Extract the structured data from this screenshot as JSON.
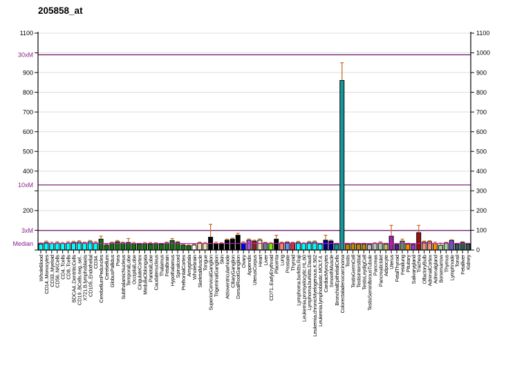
{
  "title": "205858_at",
  "chart_data": {
    "type": "bar",
    "title": "205858_at",
    "ylabel": "",
    "xlabel": "",
    "ylim": [
      0,
      1100
    ],
    "grid": "horizontal",
    "gridline_step": 100,
    "legend": "none",
    "median_value": 33,
    "marker_lines": [
      {
        "label": "30xM",
        "value": 990
      },
      {
        "label": "10xM",
        "value": 330
      },
      {
        "label": "3xM",
        "value": 99
      },
      {
        "label": "Median",
        "value": 33
      }
    ],
    "left_axis_labels": [
      {
        "text": "1100",
        "value": 1100,
        "purple": false
      },
      {
        "text": "30xM",
        "value": 990,
        "purple": true
      },
      {
        "text": "900",
        "value": 900,
        "purple": false
      },
      {
        "text": "800",
        "value": 800,
        "purple": false
      },
      {
        "text": "700",
        "value": 700,
        "purple": false
      },
      {
        "text": "600",
        "value": 600,
        "purple": false
      },
      {
        "text": "500",
        "value": 500,
        "purple": false
      },
      {
        "text": "400",
        "value": 400,
        "purple": false
      },
      {
        "text": "10xM",
        "value": 330,
        "purple": true
      },
      {
        "text": "200",
        "value": 200,
        "purple": false
      },
      {
        "text": "3xM",
        "value": 99,
        "purple": true
      },
      {
        "text": "Median",
        "value": 33,
        "purple": true
      }
    ],
    "right_axis_labels": [
      {
        "text": "1100",
        "value": 1100
      },
      {
        "text": "1000",
        "value": 1000
      },
      {
        "text": "900",
        "value": 900
      },
      {
        "text": "800",
        "value": 800
      },
      {
        "text": "700",
        "value": 700
      },
      {
        "text": "600",
        "value": 600
      },
      {
        "text": "500",
        "value": 500
      },
      {
        "text": "400",
        "value": 400
      },
      {
        "text": "300",
        "value": 300
      },
      {
        "text": "200",
        "value": 200
      },
      {
        "text": "100",
        "value": 100
      },
      {
        "text": "0",
        "value": 0
      }
    ],
    "palette": {
      "cyan": "#00FFFF",
      "darkgreen": "#167016",
      "wheat": "#F5DEB3",
      "black_": "#000000",
      "white_": "#FFFFFF",
      "blue": "#0000EE",
      "orchid": "#B452CD",
      "maroon": "#8B2323",
      "slategray": "#708090",
      "chartreuse": "#76EE00",
      "salmon": "#FA8072",
      "cornflower": "#6495ED",
      "crimson": "#DC2A50",
      "navy": "#00008B",
      "teal": "#149898",
      "darkgold": "#B8860B",
      "gray": "#BEBEBE",
      "palegreen": "#9FCD9F",
      "khaki": "#BDB76B",
      "magenta": "#AA1FAA",
      "darkpurple": "#551A8B",
      "graygreen": "#6E8B6E",
      "orange": "#FF8C00",
      "violet": "#9A32CD",
      "darkred": "#9B1010",
      "salmon2": "#E9967A",
      "slateblue": "#6A5ACD",
      "darkslate": "#2F5B52"
    },
    "style_colors": {
      "purple_label": "#8B1F8B",
      "marker_line": "#6B0F6B",
      "median_line": "#BE1CBE",
      "gridline": "#DCDCDC",
      "error_bar": "#C2661F",
      "axis": "#000000"
    },
    "samples": [
      [
        "WholeBlood",
        30,
        36,
        "cyan"
      ],
      [
        "CD14..Monocytes",
        38,
        45,
        "cyan"
      ],
      [
        "CD33..Myeloid",
        33,
        40,
        "cyan"
      ],
      [
        "CD56..NKCells",
        35,
        42,
        "cyan"
      ],
      [
        "CD4..Tcells",
        33,
        38,
        "cyan"
      ],
      [
        "CD8..Tcells",
        35,
        42,
        "cyan"
      ],
      [
        "BDCA4..DentriticCells",
        38,
        44,
        "cyan"
      ],
      [
        "CD19..BCells.neg..sel..",
        40,
        47,
        "cyan"
      ],
      [
        "X721.B.lymphoblasts",
        35,
        40,
        "cyan"
      ],
      [
        "CD105..Endothelial",
        42,
        48,
        "cyan"
      ],
      [
        "CD34.",
        35,
        42,
        "cyan"
      ],
      [
        "CerebellumPeduncles",
        55,
        70,
        "darkgreen"
      ],
      [
        "Cerebellum",
        25,
        30,
        "darkgreen"
      ],
      [
        "GlobusPallidus",
        35,
        40,
        "darkgreen"
      ],
      [
        "Pons",
        42,
        48,
        "darkgreen"
      ],
      [
        "SubthalamicNucleus",
        35,
        40,
        "darkgreen"
      ],
      [
        "TemporalLobe",
        38,
        58,
        "darkgreen"
      ],
      [
        "OccipitalLobe",
        33,
        38,
        "darkgreen"
      ],
      [
        "CingulateCortex",
        30,
        34,
        "darkgreen"
      ],
      [
        "MedullaOblongata",
        33,
        38,
        "darkgreen"
      ],
      [
        "ParietalLobe",
        30,
        38,
        "darkgreen"
      ],
      [
        "Caudatenucleus",
        33,
        37,
        "darkgreen"
      ],
      [
        "Thalamus",
        30,
        34,
        "darkgreen"
      ],
      [
        "Fetalbrain",
        35,
        40,
        "darkgreen"
      ],
      [
        "Hypothalamus",
        48,
        58,
        "darkgreen"
      ],
      [
        "Spinalcord",
        38,
        43,
        "darkgreen"
      ],
      [
        "PrefrontalCortex",
        25,
        29,
        "darkgreen"
      ],
      [
        "Amygdala",
        22,
        26,
        "darkgreen"
      ],
      [
        "Wholebrain",
        25,
        29,
        "white_"
      ],
      [
        "SkeletalMuscle",
        35,
        40,
        "wheat"
      ],
      [
        "Tongue",
        33,
        38,
        "wheat"
      ],
      [
        "SuperiorCervicalGanglion",
        65,
        130,
        "black_"
      ],
      [
        "TrigeminalGanglion",
        30,
        40,
        "black_"
      ],
      [
        "Skin",
        33,
        37,
        "black_"
      ],
      [
        "AtrioventricularNode",
        50,
        55,
        "black_"
      ],
      [
        "CiliaryGanglion",
        55,
        60,
        "black_"
      ],
      [
        "DorsalRootGanglion",
        75,
        85,
        "black_"
      ],
      [
        "Ovary",
        35,
        42,
        "blue"
      ],
      [
        "Appendix",
        50,
        56,
        "orchid"
      ],
      [
        "UterusCorpus",
        45,
        50,
        "maroon"
      ],
      [
        "Heart",
        50,
        56,
        "wheat"
      ],
      [
        "Liver",
        35,
        39,
        "slategray"
      ],
      [
        "CD71..EarlyErythroid",
        33,
        37,
        "chartreuse"
      ],
      [
        "Placenta",
        55,
        75,
        "black_"
      ],
      [
        "Lung",
        35,
        40,
        "salmon"
      ],
      [
        "Prostate",
        38,
        42,
        "cornflower"
      ],
      [
        "Thyroid",
        35,
        39,
        "crimson"
      ],
      [
        "Lymphoma.burkitts.Raji",
        38,
        44,
        "cyan"
      ],
      [
        "Leukemia.promyelocytic.HL.60",
        33,
        37,
        "cyan"
      ],
      [
        "Lymphoma.burkitts.Daudi",
        38,
        44,
        "cyan"
      ],
      [
        "Leukemia.chronicMyelogenous.K.562",
        40,
        46,
        "cyan"
      ],
      [
        "Leukemia.lymphoblastic.MOLT.4.",
        30,
        34,
        "cyan"
      ],
      [
        "CardiacMyocytes",
        50,
        75,
        "navy"
      ],
      [
        "SmoothMuscle",
        45,
        50,
        "navy"
      ],
      [
        "BronchialEpithelialCells",
        30,
        34,
        "teal"
      ],
      [
        "Colorectaladenocarcinoma",
        860,
        950,
        "teal"
      ],
      [
        "Testis",
        30,
        34,
        "darkgold"
      ],
      [
        "TestisGermCell",
        32,
        36,
        "darkgold"
      ],
      [
        "TestisInterstitial",
        30,
        34,
        "darkgold"
      ],
      [
        "TestisLeydigCell",
        30,
        34,
        "darkgold"
      ],
      [
        "TestisSeminiferousTubule",
        28,
        32,
        "gray"
      ],
      [
        "Pancreas",
        33,
        37,
        "gray"
      ],
      [
        "PancreaticIslet",
        35,
        42,
        "palegreen"
      ],
      [
        "Adipocyte",
        30,
        34,
        "khaki"
      ],
      [
        "Uterus",
        70,
        125,
        "magenta"
      ],
      [
        "FetalThyroid",
        28,
        32,
        "darkpurple"
      ],
      [
        "Fetallung",
        45,
        55,
        "graygreen"
      ],
      [
        "Pituitary",
        30,
        34,
        "orange"
      ],
      [
        "Salivarygland",
        28,
        32,
        "violet"
      ],
      [
        "Trachea",
        88,
        125,
        "darkred"
      ],
      [
        "OlfactoryBulb",
        40,
        45,
        "salmon2"
      ],
      [
        "AdrenalCortex",
        42,
        47,
        "salmon2"
      ],
      [
        "Adrenalgland",
        33,
        40,
        "orange"
      ],
      [
        "Bonemarrow",
        24,
        35,
        "palegreen"
      ],
      [
        "Thymus",
        35,
        39,
        "palegreen"
      ],
      [
        "Lymphnode",
        48,
        52,
        "slateblue"
      ],
      [
        "Tonsil",
        30,
        34,
        "darkslate"
      ],
      [
        "Fetalliver",
        38,
        42,
        "darkslate"
      ],
      [
        "Kidney",
        30,
        34,
        "darkslate"
      ]
    ]
  }
}
